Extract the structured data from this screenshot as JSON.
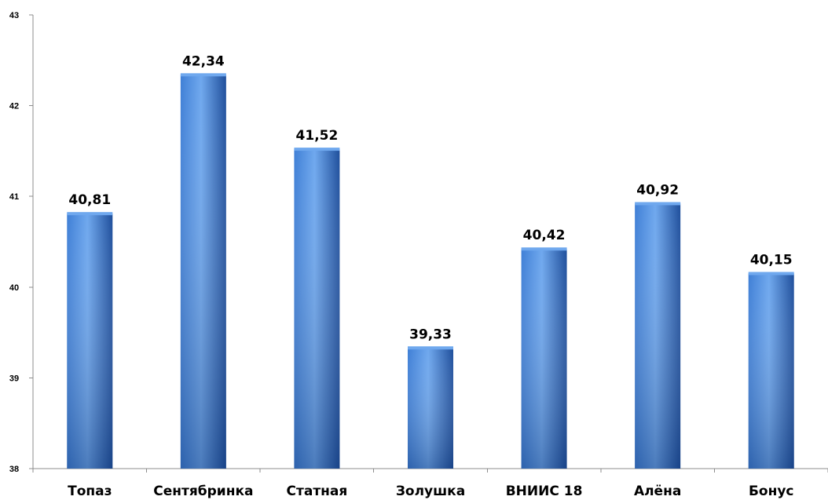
{
  "chart_data": {
    "type": "bar",
    "title": "",
    "xlabel": "",
    "ylabel": "",
    "categories": [
      "Топаз",
      "Сентябринка",
      "Статная",
      "Золушка",
      "ВНИИС 18",
      "Алёна",
      "Бонус"
    ],
    "values": [
      40.81,
      42.34,
      41.52,
      39.33,
      40.42,
      40.92,
      40.15
    ],
    "value_labels": [
      "40,81",
      "42,34",
      "41,52",
      "39,33",
      "40,42",
      "40,92",
      "40,15"
    ],
    "ylim": [
      38,
      43
    ],
    "yticks": [
      38,
      39,
      40,
      41,
      42,
      43
    ],
    "ytick_labels": [
      "38",
      "39",
      "40",
      "41",
      "42",
      "43"
    ],
    "grid": false,
    "legend": "none",
    "colors": {
      "bar_light": "#6fa8ee",
      "bar_mid": "#3f7fd6",
      "bar_dark": "#1f4f9c",
      "axis": "#8c8c8c",
      "text": "#000000"
    }
  }
}
